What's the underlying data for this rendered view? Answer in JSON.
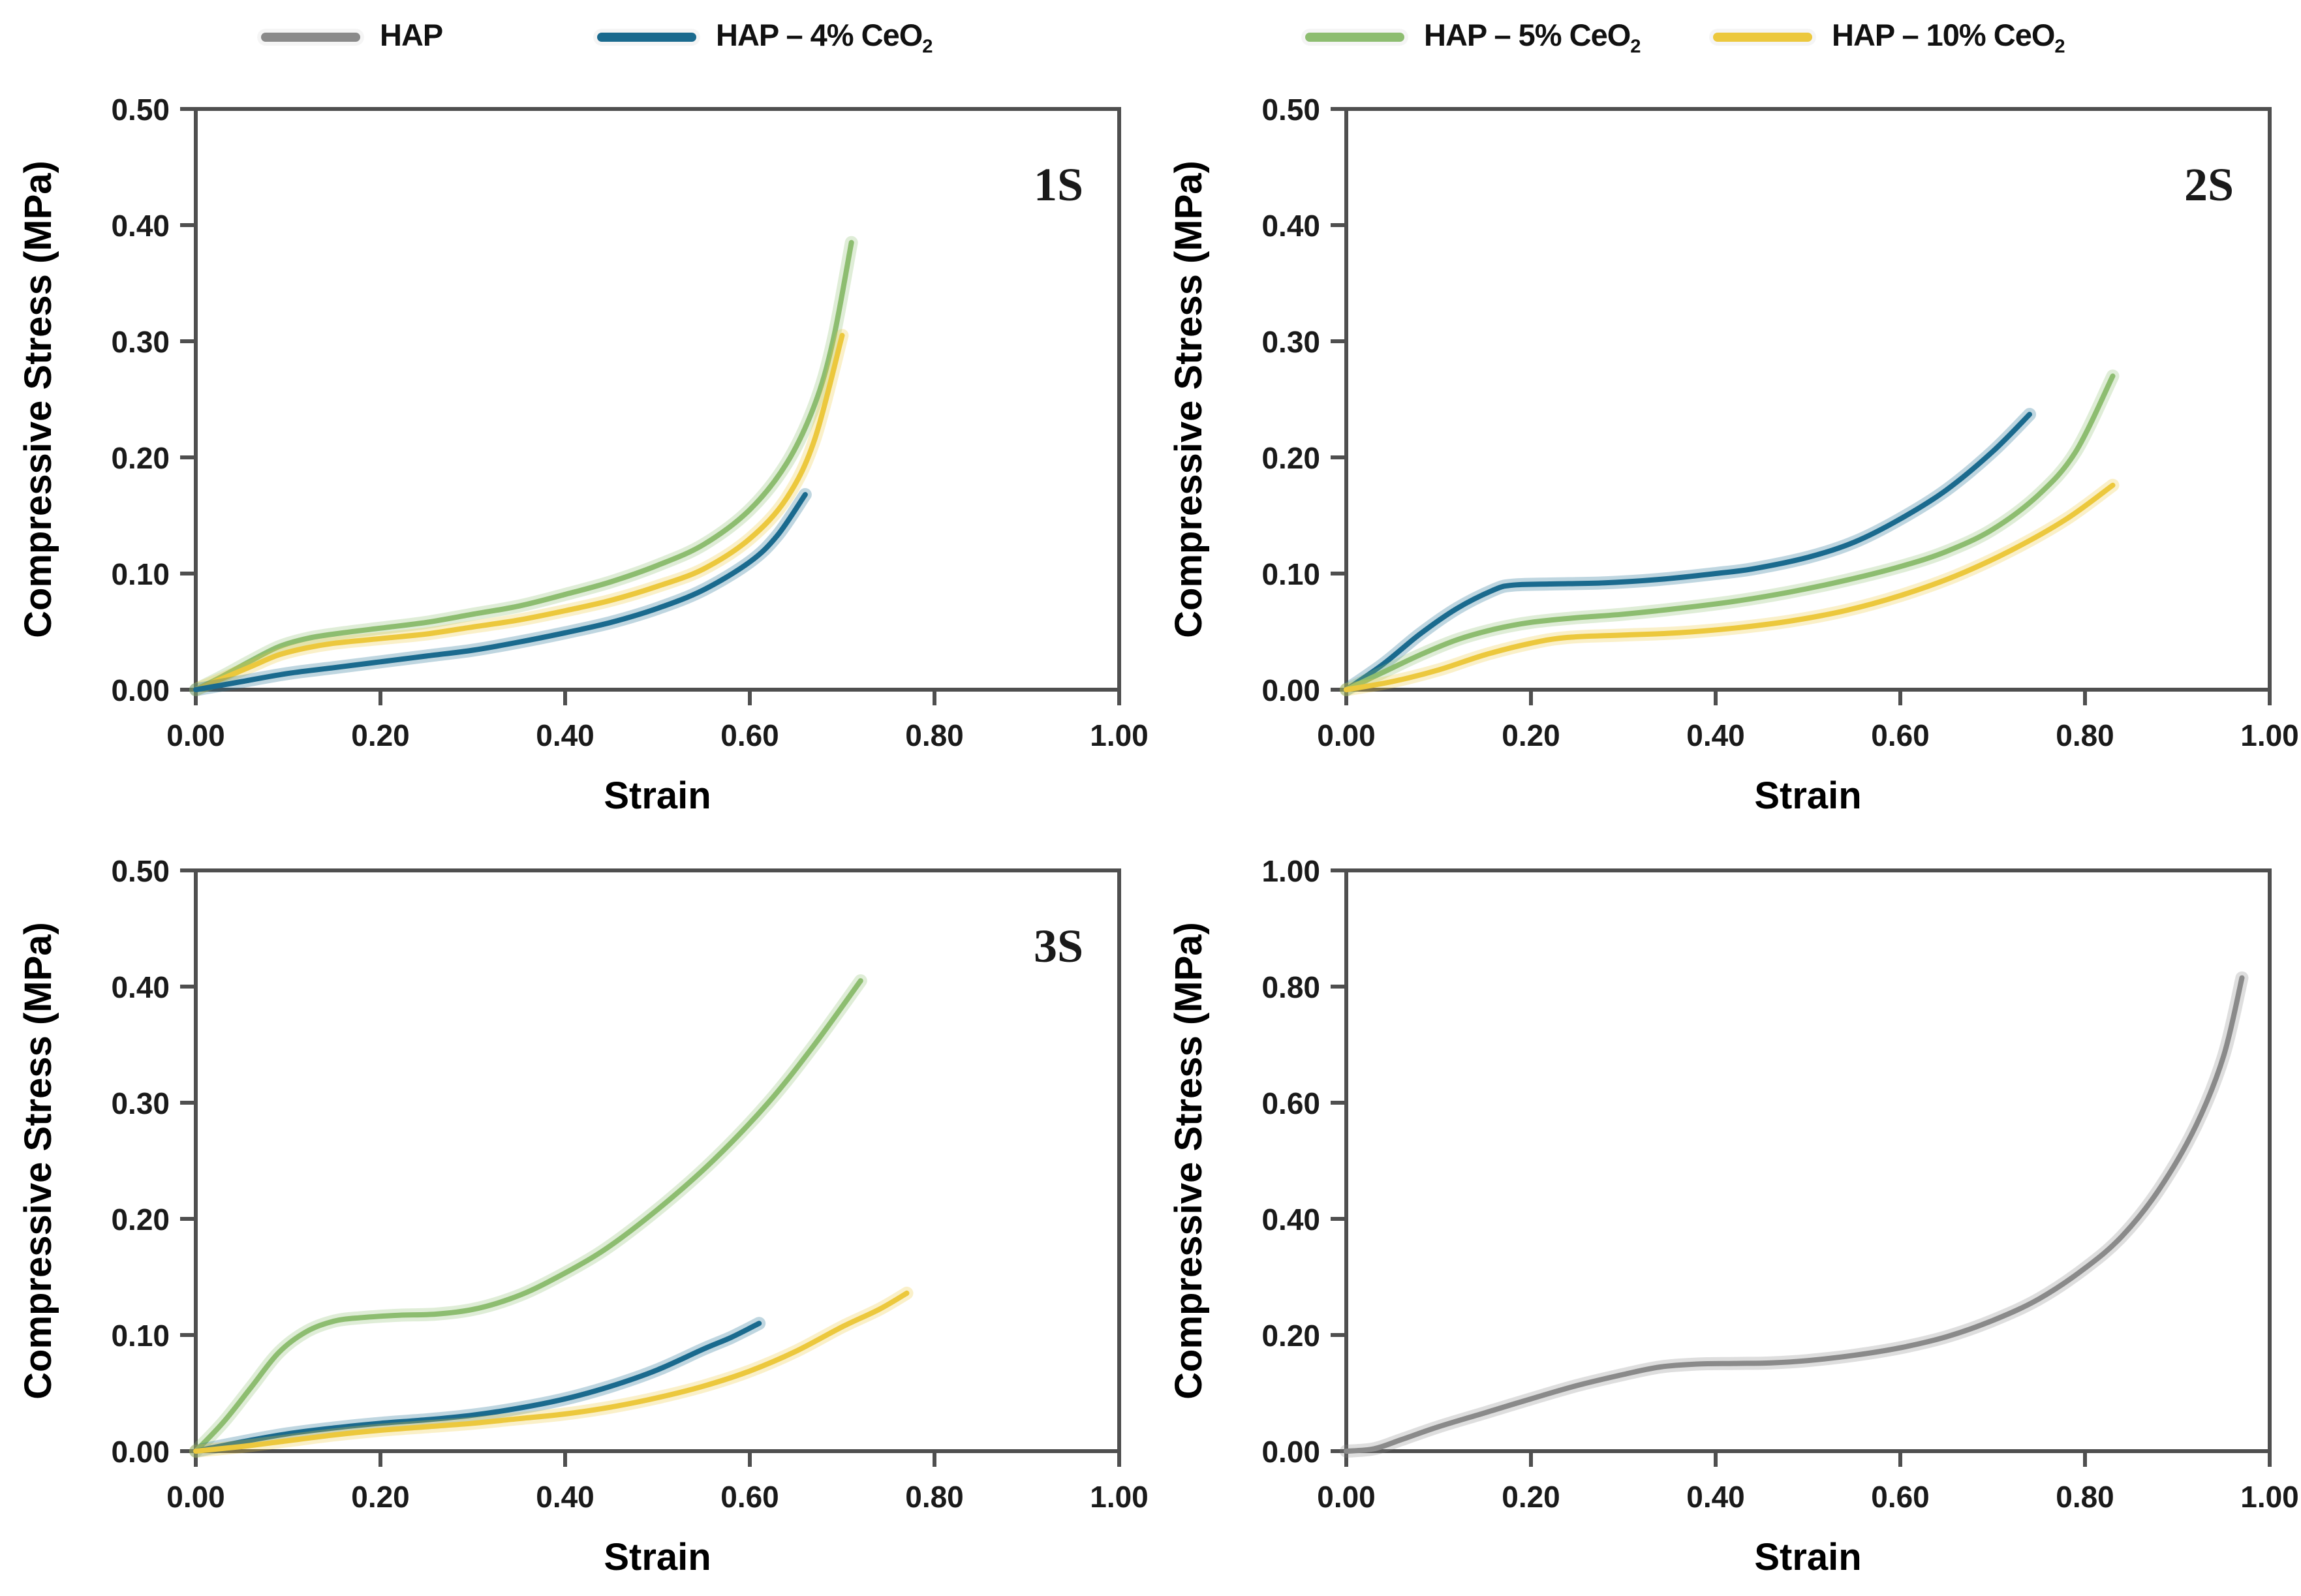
{
  "legend": {
    "items": [
      {
        "label": "HAP",
        "sub": "",
        "color": "#8a8a8a"
      },
      {
        "label": "HAP – 4% CeO",
        "sub": "2",
        "color": "#1a6a8e"
      },
      {
        "label": "HAP – 5% CeO",
        "sub": "2",
        "color": "#8dbd70"
      },
      {
        "label": "HAP – 10% CeO",
        "sub": "2",
        "color": "#ecc83d"
      }
    ]
  },
  "chart_data": [
    {
      "type": "line",
      "panel_label": "1S",
      "xlabel": "Strain",
      "ylabel": "Compressive Stress (MPa)",
      "xlim": [
        0,
        1.0
      ],
      "ylim": [
        0,
        0.5
      ],
      "grid": false,
      "xticks": {
        "vals": [
          0,
          0.2,
          0.4,
          0.6,
          0.8,
          1.0
        ],
        "labels": [
          "0.00",
          "0.20",
          "0.40",
          "0.60",
          "0.80",
          "1.00"
        ]
      },
      "yticks": {
        "vals": [
          0,
          0.1,
          0.2,
          0.3,
          0.4,
          0.5
        ],
        "labels": [
          "0.00",
          "0.10",
          "0.20",
          "0.30",
          "0.40",
          "0.50"
        ]
      },
      "series": [
        {
          "name": "HAP – 5% CeO₂",
          "color": "#8dbd70",
          "x": [
            0,
            0.03,
            0.06,
            0.09,
            0.12,
            0.15,
            0.2,
            0.25,
            0.3,
            0.35,
            0.4,
            0.45,
            0.5,
            0.55,
            0.6,
            0.64,
            0.67,
            0.69,
            0.71
          ],
          "y": [
            0,
            0.012,
            0.025,
            0.037,
            0.044,
            0.048,
            0.053,
            0.058,
            0.065,
            0.072,
            0.082,
            0.093,
            0.107,
            0.125,
            0.155,
            0.195,
            0.245,
            0.3,
            0.385
          ]
        },
        {
          "name": "HAP – 10% CeO₂",
          "color": "#ecc83d",
          "x": [
            0,
            0.03,
            0.06,
            0.09,
            0.12,
            0.15,
            0.2,
            0.25,
            0.3,
            0.35,
            0.4,
            0.45,
            0.5,
            0.55,
            0.6,
            0.64,
            0.67,
            0.7
          ],
          "y": [
            0,
            0.01,
            0.02,
            0.03,
            0.036,
            0.04,
            0.044,
            0.048,
            0.054,
            0.06,
            0.068,
            0.077,
            0.089,
            0.104,
            0.13,
            0.165,
            0.215,
            0.305
          ]
        },
        {
          "name": "HAP – 4% CeO₂",
          "color": "#1a6a8e",
          "x": [
            0,
            0.05,
            0.1,
            0.15,
            0.2,
            0.25,
            0.3,
            0.35,
            0.4,
            0.45,
            0.5,
            0.55,
            0.6,
            0.63,
            0.66
          ],
          "y": [
            0,
            0.007,
            0.014,
            0.019,
            0.024,
            0.029,
            0.034,
            0.041,
            0.049,
            0.058,
            0.07,
            0.086,
            0.11,
            0.133,
            0.168
          ]
        }
      ]
    },
    {
      "type": "line",
      "panel_label": "2S",
      "xlabel": "Strain",
      "ylabel": "Compressive Stress (MPa)",
      "xlim": [
        0,
        1.0
      ],
      "ylim": [
        0,
        0.5
      ],
      "grid": false,
      "xticks": {
        "vals": [
          0,
          0.2,
          0.4,
          0.6,
          0.8,
          1.0
        ],
        "labels": [
          "0.00",
          "0.20",
          "0.40",
          "0.60",
          "0.80",
          "1.00"
        ]
      },
      "yticks": {
        "vals": [
          0,
          0.1,
          0.2,
          0.3,
          0.4,
          0.5
        ],
        "labels": [
          "0.00",
          "0.10",
          "0.20",
          "0.30",
          "0.40",
          "0.50"
        ]
      },
      "series": [
        {
          "name": "HAP – 4% CeO₂",
          "color": "#1a6a8e",
          "x": [
            0,
            0.04,
            0.08,
            0.12,
            0.16,
            0.18,
            0.22,
            0.28,
            0.34,
            0.4,
            0.44,
            0.5,
            0.55,
            0.6,
            0.65,
            0.7,
            0.74
          ],
          "y": [
            0,
            0.022,
            0.048,
            0.07,
            0.086,
            0.09,
            0.091,
            0.092,
            0.095,
            0.1,
            0.104,
            0.114,
            0.127,
            0.147,
            0.172,
            0.205,
            0.237
          ]
        },
        {
          "name": "HAP – 5% CeO₂",
          "color": "#8dbd70",
          "x": [
            0,
            0.04,
            0.08,
            0.12,
            0.16,
            0.2,
            0.25,
            0.3,
            0.36,
            0.42,
            0.48,
            0.54,
            0.6,
            0.65,
            0.7,
            0.75,
            0.79,
            0.83
          ],
          "y": [
            0,
            0.015,
            0.03,
            0.043,
            0.052,
            0.058,
            0.062,
            0.065,
            0.07,
            0.076,
            0.084,
            0.094,
            0.106,
            0.119,
            0.138,
            0.168,
            0.205,
            0.27
          ]
        },
        {
          "name": "HAP – 10% CeO₂",
          "color": "#ecc83d",
          "x": [
            0,
            0.05,
            0.1,
            0.15,
            0.2,
            0.24,
            0.3,
            0.36,
            0.42,
            0.48,
            0.54,
            0.6,
            0.66,
            0.72,
            0.78,
            0.83
          ],
          "y": [
            0,
            0.007,
            0.017,
            0.03,
            0.04,
            0.045,
            0.047,
            0.049,
            0.053,
            0.059,
            0.068,
            0.081,
            0.098,
            0.12,
            0.147,
            0.176
          ]
        }
      ]
    },
    {
      "type": "line",
      "panel_label": "3S",
      "xlabel": "Strain",
      "ylabel": "Compressive Stress (MPa)",
      "xlim": [
        0,
        1.0
      ],
      "ylim": [
        0,
        0.5
      ],
      "grid": false,
      "xticks": {
        "vals": [
          0,
          0.2,
          0.4,
          0.6,
          0.8,
          1.0
        ],
        "labels": [
          "0.00",
          "0.20",
          "0.40",
          "0.60",
          "0.80",
          "1.00"
        ]
      },
      "yticks": {
        "vals": [
          0,
          0.1,
          0.2,
          0.3,
          0.4,
          0.5
        ],
        "labels": [
          "0.00",
          "0.10",
          "0.20",
          "0.30",
          "0.40",
          "0.50"
        ]
      },
      "series": [
        {
          "name": "HAP – 5% CeO₂",
          "color": "#8dbd70",
          "x": [
            0,
            0.03,
            0.06,
            0.09,
            0.12,
            0.15,
            0.18,
            0.22,
            0.26,
            0.3,
            0.34,
            0.38,
            0.44,
            0.5,
            0.56,
            0.62,
            0.67,
            0.72
          ],
          "y": [
            0,
            0.025,
            0.055,
            0.085,
            0.103,
            0.112,
            0.115,
            0.117,
            0.118,
            0.122,
            0.131,
            0.145,
            0.172,
            0.208,
            0.25,
            0.3,
            0.35,
            0.405
          ]
        },
        {
          "name": "HAP – 4% CeO₂",
          "color": "#1a6a8e",
          "x": [
            0,
            0.05,
            0.1,
            0.15,
            0.2,
            0.25,
            0.3,
            0.35,
            0.4,
            0.45,
            0.5,
            0.55,
            0.58,
            0.61
          ],
          "y": [
            0,
            0.008,
            0.015,
            0.02,
            0.024,
            0.027,
            0.031,
            0.037,
            0.045,
            0.056,
            0.07,
            0.088,
            0.098,
            0.11
          ]
        },
        {
          "name": "HAP – 10% CeO₂",
          "color": "#ecc83d",
          "x": [
            0,
            0.05,
            0.1,
            0.15,
            0.2,
            0.25,
            0.3,
            0.35,
            0.4,
            0.45,
            0.5,
            0.55,
            0.6,
            0.65,
            0.7,
            0.74,
            0.77
          ],
          "y": [
            0,
            0.004,
            0.009,
            0.014,
            0.018,
            0.021,
            0.024,
            0.028,
            0.032,
            0.038,
            0.046,
            0.056,
            0.069,
            0.086,
            0.107,
            0.122,
            0.136
          ]
        }
      ]
    },
    {
      "type": "line",
      "panel_label": "",
      "xlabel": "Strain",
      "ylabel": "Compressive Stress (MPa)",
      "xlim": [
        0,
        1.0
      ],
      "ylim": [
        0,
        1.0
      ],
      "grid": false,
      "xticks": {
        "vals": [
          0,
          0.2,
          0.4,
          0.6,
          0.8,
          1.0
        ],
        "labels": [
          "0.00",
          "0.20",
          "0.40",
          "0.60",
          "0.80",
          "1.00"
        ]
      },
      "yticks": {
        "vals": [
          0,
          0.2,
          0.4,
          0.6,
          0.8,
          1.0
        ],
        "labels": [
          "0.00",
          "0.20",
          "0.40",
          "0.60",
          "0.80",
          "1.00"
        ]
      },
      "series": [
        {
          "name": "HAP",
          "color": "#8a8a8a",
          "x": [
            0,
            0.03,
            0.06,
            0.1,
            0.15,
            0.2,
            0.25,
            0.3,
            0.34,
            0.38,
            0.42,
            0.46,
            0.5,
            0.55,
            0.6,
            0.65,
            0.7,
            0.75,
            0.8,
            0.84,
            0.88,
            0.92,
            0.95,
            0.97
          ],
          "y": [
            0,
            0.004,
            0.02,
            0.042,
            0.066,
            0.09,
            0.113,
            0.132,
            0.145,
            0.15,
            0.151,
            0.152,
            0.156,
            0.165,
            0.178,
            0.197,
            0.225,
            0.262,
            0.315,
            0.37,
            0.45,
            0.56,
            0.68,
            0.815
          ]
        }
      ]
    }
  ]
}
